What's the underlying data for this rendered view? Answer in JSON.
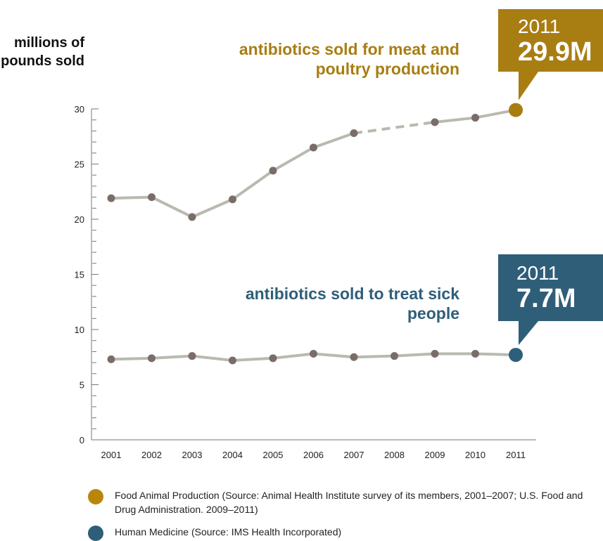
{
  "chart_data": {
    "type": "line",
    "ylabel": "millions of pounds sold",
    "xlabel": "",
    "ylim": [
      0,
      30
    ],
    "y_ticks": [
      0,
      5,
      10,
      15,
      20,
      25,
      30
    ],
    "x": [
      "2001",
      "2002",
      "2003",
      "2004",
      "2005",
      "2006",
      "2007",
      "2008",
      "2009",
      "2010",
      "2011"
    ],
    "series": [
      {
        "name": "antibiotics sold for meat and poultry production",
        "color": "#b8bab0",
        "marker_color": "#7a6d68",
        "highlight_color": "#a87d12",
        "values": [
          21.9,
          22.0,
          20.2,
          21.8,
          24.4,
          26.5,
          27.8,
          null,
          28.8,
          29.2,
          29.9
        ],
        "dashed_gap": [
          "2007",
          "2009"
        ],
        "callout_year": "2011",
        "callout_value": "29.9M"
      },
      {
        "name": "antibiotics sold to treat sick people",
        "color": "#b8bab0",
        "marker_color": "#7a6d68",
        "highlight_color": "#2f5e79",
        "values": [
          7.3,
          7.4,
          7.6,
          7.2,
          7.4,
          7.8,
          7.5,
          7.6,
          7.8,
          7.8,
          7.7
        ],
        "callout_year": "2011",
        "callout_value": "7.7M"
      }
    ],
    "legend": [
      {
        "label": "Food Animal Production (Source: Animal Health Institute survey of its members, 2001–2007; U.S. Food and Drug Administration. 2009–2011)",
        "color": "#b8860b"
      },
      {
        "label": "Human Medicine (Source: IMS Health Incorporated)",
        "color": "#2f5e79"
      }
    ]
  }
}
